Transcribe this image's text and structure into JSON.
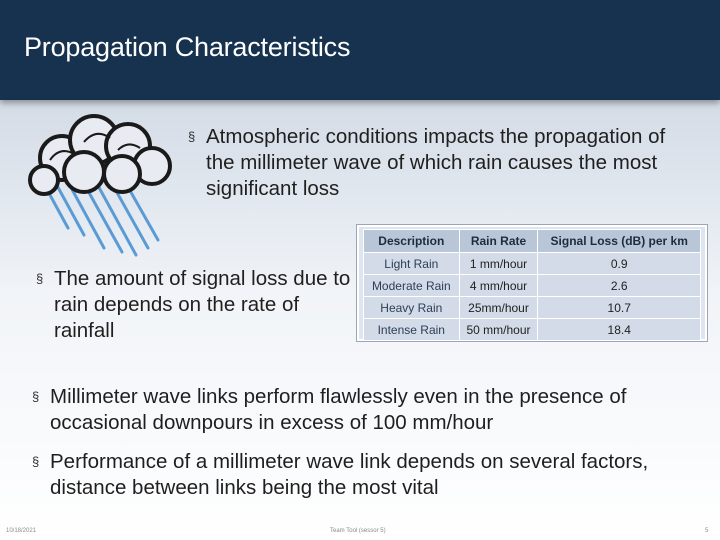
{
  "slide": {
    "title": "Propagation Characteristics",
    "bullet_glyph": "§",
    "bullets": [
      "Atmospheric conditions impacts the propagation of the millimeter wave of which rain causes the most significant loss",
      "The amount of signal loss due to rain depends on the rate of rainfall",
      "Millimeter wave links perform flawlessly even in the presence of occasional downpours in excess of 100 mm/hour",
      "Performance of a millimeter wave link depends on several factors, distance between links being the most vital"
    ],
    "image_icon": "rain-cloud-icon"
  },
  "table": {
    "headers": [
      "Description",
      "Rain Rate",
      "Signal Loss (dB) per km"
    ],
    "rows": [
      [
        "Light Rain",
        "1 mm/hour",
        "0.9"
      ],
      [
        "Moderate Rain",
        "4 mm/hour",
        "2.6"
      ],
      [
        "Heavy Rain",
        "25mm/hour",
        "10.7"
      ],
      [
        "Intense Rain",
        "50 mm/hour",
        "18.4"
      ]
    ]
  },
  "footer": {
    "date": "10/18/2021",
    "center": "Team Tool (sessor 5)",
    "page": "5"
  },
  "colors": {
    "title_bar": "#16324f",
    "table_header": "#b9c6d7",
    "table_cell": "#d2dbe7",
    "rain": "#5b9bd5"
  }
}
